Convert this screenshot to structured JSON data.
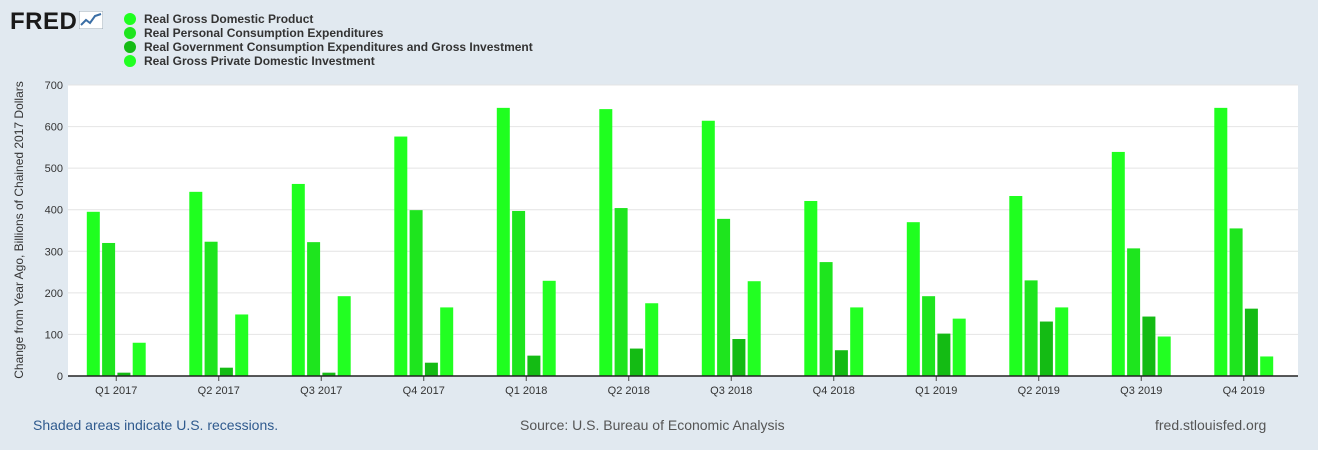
{
  "logo": {
    "text": "FRED",
    "icon": "trend-chart-icon"
  },
  "chart_data": {
    "type": "bar",
    "title": "",
    "xlabel": "",
    "ylabel": "Change from Year Ago, Billions of Chained 2017 Dollars",
    "ylim": [
      0,
      700
    ],
    "yticks": [
      0,
      100,
      200,
      300,
      400,
      500,
      600,
      700
    ],
    "grid": true,
    "legend_position": "top-left",
    "categories": [
      "Q1 2017",
      "Q2 2017",
      "Q3 2017",
      "Q4 2017",
      "Q1 2018",
      "Q2 2018",
      "Q3 2018",
      "Q4 2018",
      "Q1 2019",
      "Q2 2019",
      "Q3 2019",
      "Q4 2019"
    ],
    "series": [
      {
        "name": "Real Gross Domestic Product",
        "color": "#1fff1f",
        "values": [
          395,
          443,
          462,
          576,
          645,
          642,
          614,
          421,
          370,
          433,
          539,
          645
        ]
      },
      {
        "name": "Real Personal Consumption Expenditures",
        "color": "#1ee51e",
        "values": [
          320,
          323,
          322,
          399,
          397,
          404,
          378,
          274,
          192,
          230,
          307,
          355
        ]
      },
      {
        "name": "Real Government Consumption Expenditures and Gross Investment",
        "color": "#14bb14",
        "values": [
          8,
          20,
          8,
          32,
          49,
          66,
          89,
          62,
          102,
          131,
          143,
          162
        ]
      },
      {
        "name": "Real Gross Private Domestic Investment",
        "color": "#22ff22",
        "values": [
          80,
          148,
          192,
          165,
          229,
          175,
          228,
          165,
          138,
          165,
          95,
          47
        ]
      }
    ]
  },
  "footer": {
    "recession_note": "Shaded areas indicate U.S. recessions.",
    "source": "Source: U.S. Bureau of Economic Analysis",
    "site": "fred.stlouisfed.org"
  }
}
